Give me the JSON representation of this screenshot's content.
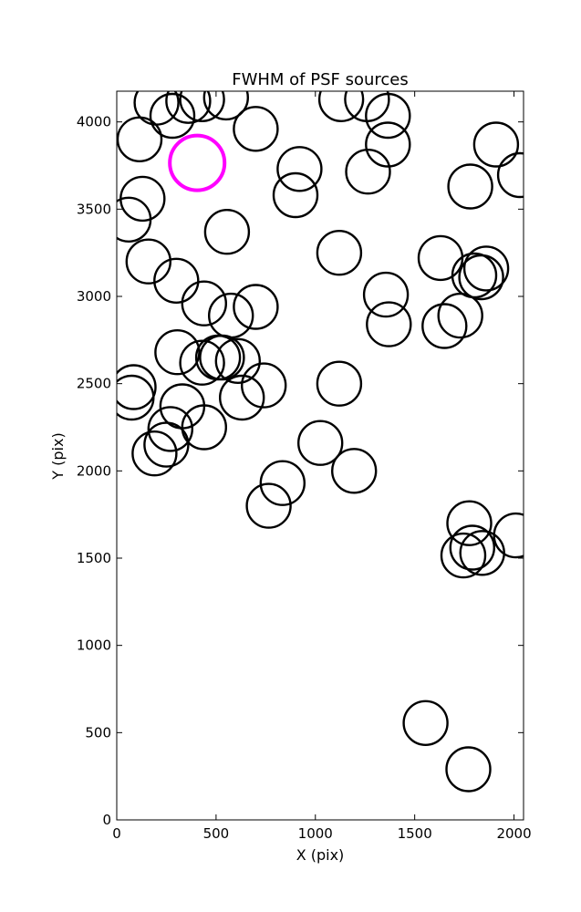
{
  "chart_data": {
    "type": "scatter",
    "title": "FWHM of PSF sources",
    "xlabel": "X (pix)",
    "ylabel": "Y (pix)",
    "xlim": [
      0,
      2048
    ],
    "ylim": [
      0,
      4176
    ],
    "xticks": [
      0,
      500,
      1000,
      1500,
      2000
    ],
    "yticks": [
      0,
      500,
      1000,
      1500,
      2000,
      2500,
      3000,
      3500,
      4000
    ],
    "grid": false,
    "legend": "none",
    "marker": "open-circle",
    "default_color": "#000000",
    "highlight_color": "#ff00ff",
    "series": [
      {
        "color": "#000000",
        "points": [
          {
            "x": 200,
            "y": 4110
          },
          {
            "x": 360,
            "y": 4120
          },
          {
            "x": 280,
            "y": 4035
          },
          {
            "x": 430,
            "y": 4130
          },
          {
            "x": 550,
            "y": 4140
          },
          {
            "x": 700,
            "y": 3960
          },
          {
            "x": 115,
            "y": 3900
          },
          {
            "x": 1130,
            "y": 4130
          },
          {
            "x": 1260,
            "y": 4130
          },
          {
            "x": 1365,
            "y": 4035
          },
          {
            "x": 1365,
            "y": 3870
          },
          {
            "x": 920,
            "y": 3730
          },
          {
            "x": 900,
            "y": 3580
          },
          {
            "x": 1265,
            "y": 3715
          },
          {
            "x": 1780,
            "y": 3630
          },
          {
            "x": 1910,
            "y": 3870
          },
          {
            "x": 2030,
            "y": 3695
          },
          {
            "x": 130,
            "y": 3560
          },
          {
            "x": 60,
            "y": 3440
          },
          {
            "x": 555,
            "y": 3370
          },
          {
            "x": 160,
            "y": 3200
          },
          {
            "x": 300,
            "y": 3090
          },
          {
            "x": 1120,
            "y": 3250
          },
          {
            "x": 1630,
            "y": 3220
          },
          {
            "x": 1800,
            "y": 3120
          },
          {
            "x": 1860,
            "y": 3160
          },
          {
            "x": 1835,
            "y": 3110
          },
          {
            "x": 440,
            "y": 2960
          },
          {
            "x": 575,
            "y": 2890
          },
          {
            "x": 700,
            "y": 2940
          },
          {
            "x": 1355,
            "y": 3010
          },
          {
            "x": 1370,
            "y": 2840
          },
          {
            "x": 1650,
            "y": 2830
          },
          {
            "x": 1730,
            "y": 2890
          },
          {
            "x": 305,
            "y": 2680
          },
          {
            "x": 430,
            "y": 2620
          },
          {
            "x": 510,
            "y": 2650
          },
          {
            "x": 530,
            "y": 2650
          },
          {
            "x": 610,
            "y": 2630
          },
          {
            "x": 85,
            "y": 2480
          },
          {
            "x": 75,
            "y": 2420
          },
          {
            "x": 630,
            "y": 2420
          },
          {
            "x": 740,
            "y": 2490
          },
          {
            "x": 1120,
            "y": 2500
          },
          {
            "x": 330,
            "y": 2370
          },
          {
            "x": 270,
            "y": 2240
          },
          {
            "x": 440,
            "y": 2250
          },
          {
            "x": 250,
            "y": 2150
          },
          {
            "x": 190,
            "y": 2100
          },
          {
            "x": 1025,
            "y": 2160
          },
          {
            "x": 1195,
            "y": 2000
          },
          {
            "x": 835,
            "y": 1930
          },
          {
            "x": 765,
            "y": 1800
          },
          {
            "x": 1775,
            "y": 1700
          },
          {
            "x": 2010,
            "y": 1630
          },
          {
            "x": 1745,
            "y": 1515
          },
          {
            "x": 1790,
            "y": 1560
          },
          {
            "x": 1840,
            "y": 1530
          },
          {
            "x": 1555,
            "y": 555
          },
          {
            "x": 1770,
            "y": 290
          }
        ]
      },
      {
        "color": "#ff00ff",
        "points": [
          {
            "x": 405,
            "y": 3765
          }
        ]
      }
    ]
  }
}
